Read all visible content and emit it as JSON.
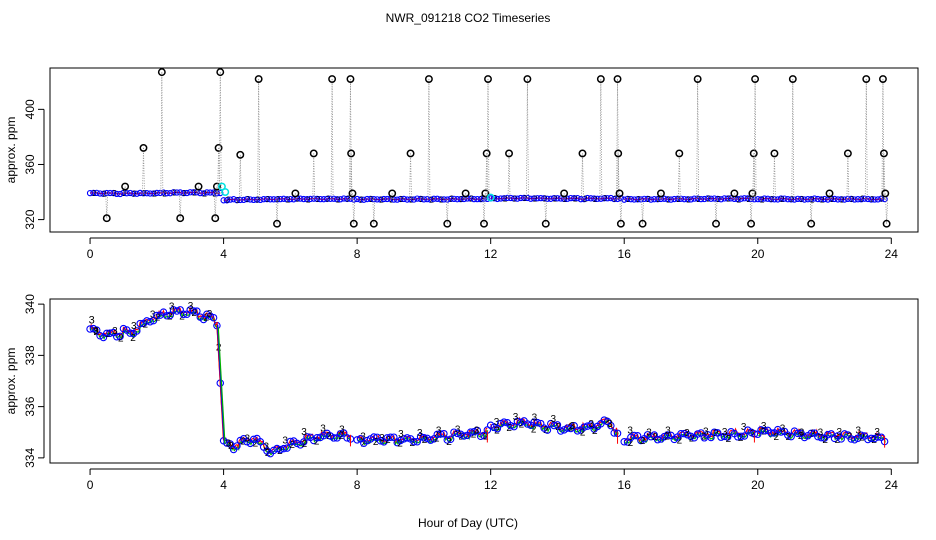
{
  "title": "NWR_091218  CO2 Timeseries",
  "xlabel": "Hour of Day (UTC)",
  "colors": {
    "black": "#000000",
    "blue": "#0000ff",
    "red": "#ff0000",
    "green": "#00b000",
    "cyan": "#00e0e0",
    "gray": "#888888"
  },
  "chart_data": [
    {
      "type": "scatter",
      "name": "top-panel",
      "title": "NWR_091218  CO2 Timeseries",
      "xlabel": "",
      "ylabel": "approx. ppm",
      "xlim": [
        -1.2,
        24.8
      ],
      "ylim": [
        311,
        430
      ],
      "xticks": [
        0,
        4,
        8,
        12,
        16,
        20,
        24
      ],
      "xtick_labels": [
        "0",
        "4",
        "8",
        "12",
        "16",
        "20",
        "24"
      ],
      "yticks": [
        320,
        360,
        400
      ],
      "ytick_labels": [
        "320",
        "360",
        "400"
      ],
      "segments": [
        {
          "x0": 0.0,
          "x1": 3.9,
          "level": 338.8,
          "drift": [
            339.2,
            338.9,
            339.6,
            339.3
          ]
        },
        {
          "x0": 4.0,
          "x1": 7.9,
          "level": 334.8,
          "drift": [
            334.3,
            334.8,
            335.0,
            334.9
          ]
        },
        {
          "x0": 8.0,
          "x1": 11.9,
          "level": 334.8,
          "drift": [
            334.7,
            334.8,
            334.9,
            335.0
          ]
        },
        {
          "x0": 12.0,
          "x1": 15.9,
          "level": 335.2,
          "drift": [
            335.3,
            335.4,
            335.2,
            335.3
          ]
        },
        {
          "x0": 16.0,
          "x1": 19.9,
          "level": 334.9,
          "drift": [
            334.8,
            334.9,
            335.0,
            335.1
          ]
        },
        {
          "x0": 20.0,
          "x1": 23.8,
          "level": 334.9,
          "drift": [
            335.0,
            334.9,
            334.9,
            334.8
          ]
        }
      ],
      "spikes": [
        {
          "x": 0.5,
          "y": 321
        },
        {
          "x": 1.05,
          "y": 344
        },
        {
          "x": 1.6,
          "y": 372
        },
        {
          "x": 2.15,
          "y": 427
        },
        {
          "x": 2.7,
          "y": 321
        },
        {
          "x": 3.25,
          "y": 344
        },
        {
          "x": 3.75,
          "y": 321
        },
        {
          "x": 3.8,
          "y": 344
        },
        {
          "x": 3.85,
          "y": 372
        },
        {
          "x": 3.9,
          "y": 427
        },
        {
          "x": 4.5,
          "y": 367
        },
        {
          "x": 5.05,
          "y": 422
        },
        {
          "x": 5.6,
          "y": 317
        },
        {
          "x": 6.15,
          "y": 339
        },
        {
          "x": 6.7,
          "y": 368
        },
        {
          "x": 7.25,
          "y": 422
        },
        {
          "x": 7.8,
          "y": 422
        },
        {
          "x": 7.82,
          "y": 368
        },
        {
          "x": 7.86,
          "y": 339
        },
        {
          "x": 7.9,
          "y": 317
        },
        {
          "x": 8.5,
          "y": 317
        },
        {
          "x": 9.05,
          "y": 339
        },
        {
          "x": 9.6,
          "y": 368
        },
        {
          "x": 10.15,
          "y": 422
        },
        {
          "x": 10.7,
          "y": 317
        },
        {
          "x": 11.25,
          "y": 339
        },
        {
          "x": 11.8,
          "y": 317
        },
        {
          "x": 11.84,
          "y": 339
        },
        {
          "x": 11.88,
          "y": 368
        },
        {
          "x": 11.92,
          "y": 422
        },
        {
          "x": 12.55,
          "y": 368
        },
        {
          "x": 13.1,
          "y": 422
        },
        {
          "x": 13.65,
          "y": 317
        },
        {
          "x": 14.2,
          "y": 339
        },
        {
          "x": 14.75,
          "y": 368
        },
        {
          "x": 15.3,
          "y": 422
        },
        {
          "x": 15.8,
          "y": 422
        },
        {
          "x": 15.82,
          "y": 368
        },
        {
          "x": 15.86,
          "y": 339
        },
        {
          "x": 15.9,
          "y": 317
        },
        {
          "x": 16.55,
          "y": 317
        },
        {
          "x": 17.1,
          "y": 339
        },
        {
          "x": 17.65,
          "y": 368
        },
        {
          "x": 18.2,
          "y": 422
        },
        {
          "x": 18.75,
          "y": 317
        },
        {
          "x": 19.3,
          "y": 339
        },
        {
          "x": 19.8,
          "y": 317
        },
        {
          "x": 19.84,
          "y": 339
        },
        {
          "x": 19.88,
          "y": 368
        },
        {
          "x": 19.92,
          "y": 422
        },
        {
          "x": 20.5,
          "y": 368
        },
        {
          "x": 21.05,
          "y": 422
        },
        {
          "x": 21.6,
          "y": 317
        },
        {
          "x": 22.15,
          "y": 339
        },
        {
          "x": 22.7,
          "y": 368
        },
        {
          "x": 23.25,
          "y": 422
        },
        {
          "x": 23.75,
          "y": 422
        },
        {
          "x": 23.78,
          "y": 368
        },
        {
          "x": 23.82,
          "y": 339
        },
        {
          "x": 23.86,
          "y": 317
        }
      ],
      "cyan_markers": [
        {
          "x": 3.95,
          "y": 344
        },
        {
          "x": 4.05,
          "y": 340
        },
        {
          "x": 12.0,
          "y": 336
        }
      ],
      "series": [
        {
          "name": "blue circles",
          "marker": "o",
          "color": "#0000ff"
        },
        {
          "name": "red line",
          "marker": "-",
          "color": "#ff0000"
        },
        {
          "name": "green '2'",
          "marker": "2",
          "color": "#00b000"
        },
        {
          "name": "black spikes",
          "marker": "o",
          "color": "#000000"
        }
      ]
    },
    {
      "type": "scatter",
      "name": "bottom-panel",
      "xlabel": "Hour of Day (UTC)",
      "ylabel": "approx. ppm",
      "xlim": [
        -1.2,
        24.8
      ],
      "ylim": [
        333.8,
        340.2
      ],
      "xticks": [
        0,
        4,
        8,
        12,
        16,
        20,
        24
      ],
      "xtick_labels": [
        "0",
        "4",
        "8",
        "12",
        "16",
        "20",
        "24"
      ],
      "yticks": [
        334,
        336,
        338,
        340
      ],
      "ytick_labels": [
        "334",
        "336",
        "338",
        "340"
      ],
      "profile": [
        {
          "x": 0.0,
          "y": 339.1
        },
        {
          "x": 0.3,
          "y": 338.9
        },
        {
          "x": 0.6,
          "y": 338.85
        },
        {
          "x": 0.9,
          "y": 338.95
        },
        {
          "x": 1.1,
          "y": 339.0
        },
        {
          "x": 1.2,
          "y": 338.8
        },
        {
          "x": 1.4,
          "y": 339.1
        },
        {
          "x": 1.7,
          "y": 339.4
        },
        {
          "x": 2.0,
          "y": 339.6
        },
        {
          "x": 2.4,
          "y": 339.75
        },
        {
          "x": 2.8,
          "y": 339.8
        },
        {
          "x": 3.1,
          "y": 339.7
        },
        {
          "x": 3.4,
          "y": 339.6
        },
        {
          "x": 3.7,
          "y": 339.45
        },
        {
          "x": 3.8,
          "y": 339.3
        },
        {
          "x": 4.0,
          "y": 334.7
        },
        {
          "x": 4.3,
          "y": 334.5
        },
        {
          "x": 4.6,
          "y": 334.7
        },
        {
          "x": 4.9,
          "y": 334.8
        },
        {
          "x": 5.2,
          "y": 334.5
        },
        {
          "x": 5.5,
          "y": 334.3
        },
        {
          "x": 5.8,
          "y": 334.5
        },
        {
          "x": 6.2,
          "y": 334.65
        },
        {
          "x": 6.6,
          "y": 334.85
        },
        {
          "x": 7.0,
          "y": 334.9
        },
        {
          "x": 7.4,
          "y": 334.95
        },
        {
          "x": 7.8,
          "y": 334.9
        },
        {
          "x": 8.0,
          "y": 334.75
        },
        {
          "x": 9.0,
          "y": 334.75
        },
        {
          "x": 10.0,
          "y": 334.8
        },
        {
          "x": 11.0,
          "y": 334.95
        },
        {
          "x": 11.9,
          "y": 335.05
        },
        {
          "x": 12.0,
          "y": 335.25
        },
        {
          "x": 12.8,
          "y": 335.45
        },
        {
          "x": 13.6,
          "y": 335.3
        },
        {
          "x": 14.4,
          "y": 335.2
        },
        {
          "x": 15.2,
          "y": 335.3
        },
        {
          "x": 15.5,
          "y": 335.5
        },
        {
          "x": 15.8,
          "y": 335.0
        },
        {
          "x": 16.0,
          "y": 334.8
        },
        {
          "x": 17.0,
          "y": 334.85
        },
        {
          "x": 18.0,
          "y": 334.95
        },
        {
          "x": 19.0,
          "y": 335.0
        },
        {
          "x": 19.9,
          "y": 335.05
        },
        {
          "x": 20.0,
          "y": 335.1
        },
        {
          "x": 21.0,
          "y": 335.0
        },
        {
          "x": 22.0,
          "y": 334.95
        },
        {
          "x": 23.0,
          "y": 334.9
        },
        {
          "x": 23.8,
          "y": 334.85
        }
      ],
      "series": [
        {
          "name": "blue circles",
          "marker": "o",
          "color": "#0000ff"
        },
        {
          "name": "red line",
          "marker": "-",
          "color": "#ff0000"
        },
        {
          "name": "green '2'",
          "marker": "2",
          "color": "#00b000"
        },
        {
          "name": "blue '3'",
          "marker": "3",
          "color": "#0000ff"
        }
      ]
    }
  ]
}
